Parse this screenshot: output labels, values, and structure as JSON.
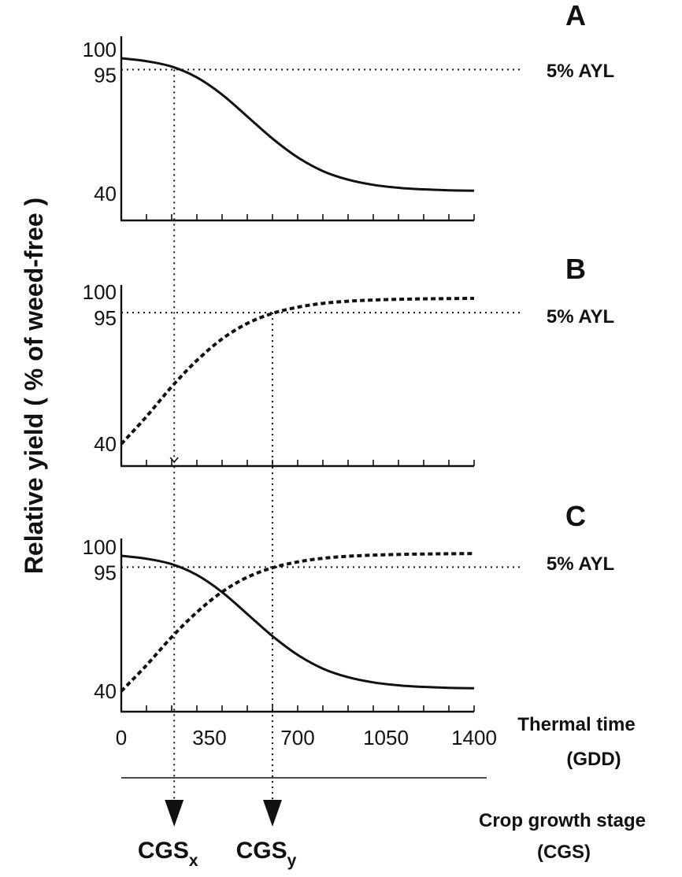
{
  "chart_data": {
    "type": "line",
    "ylabel": "Relative yield ( % of weed-free )",
    "xlabel": [
      "Thermal time",
      "(GDD)"
    ],
    "x_ticks": [
      "0",
      "350",
      "700",
      "1050",
      "1400"
    ],
    "x_tick_values": [
      0,
      350,
      700,
      1050,
      1400
    ],
    "x_minor_step": 100,
    "xlim": [
      0,
      1400
    ],
    "ylim": [
      40,
      100
    ],
    "y_ticks": [
      {
        "value": 100,
        "label": "100"
      },
      {
        "value": 95,
        "label": "95"
      },
      {
        "value": 40,
        "label": "40"
      }
    ],
    "threshold": {
      "value": 95,
      "label": "5% AYL"
    },
    "panels": [
      {
        "name": "A",
        "series": [
          {
            "style": "solid",
            "x": [
              0,
              100,
              200,
              300,
              400,
              500,
              600,
              700,
              800,
              900,
              1000,
              1100,
              1200,
              1300,
              1400
            ],
            "y": [
              100,
              98.7,
              96.3,
              91.5,
              83.9,
              74.2,
              64.4,
              56.1,
              50.0,
              46.2,
              43.9,
              42.6,
              41.9,
              41.5,
              41.3
            ]
          }
        ]
      },
      {
        "name": "B",
        "series": [
          {
            "style": "dashed",
            "x": [
              0,
              100,
              200,
              300,
              400,
              500,
              600,
              700,
              800,
              900,
              1000,
              1100,
              1200,
              1300,
              1400
            ],
            "y": [
              40,
              51.5,
              64.0,
              75.0,
              84.0,
              90.5,
              94.7,
              97.3,
              98.9,
              99.8,
              100.3,
              100.6,
              100.8,
              100.9,
              101.0
            ]
          }
        ]
      },
      {
        "name": "C",
        "series": [
          {
            "style": "solid",
            "x": [
              0,
              100,
              200,
              300,
              400,
              500,
              600,
              700,
              800,
              900,
              1000,
              1100,
              1200,
              1300,
              1400
            ],
            "y": [
              100,
              98.7,
              96.3,
              91.5,
              83.9,
              74.2,
              64.4,
              56.1,
              50.0,
              46.2,
              43.9,
              42.6,
              41.9,
              41.5,
              41.3
            ]
          },
          {
            "style": "dashed",
            "x": [
              0,
              100,
              200,
              300,
              400,
              500,
              600,
              700,
              800,
              900,
              1000,
              1100,
              1200,
              1300,
              1400
            ],
            "y": [
              40,
              51.5,
              64.0,
              75.0,
              84.0,
              90.5,
              94.7,
              97.3,
              98.9,
              99.8,
              100.3,
              100.6,
              100.8,
              100.9,
              101.0
            ]
          }
        ]
      }
    ],
    "stage_markers": [
      {
        "name": "CGS",
        "sub": "x",
        "x": 210
      },
      {
        "name": "CGS",
        "sub": "y",
        "x": 600
      }
    ],
    "stage_label": [
      "Crop growth stage",
      "(CGS)"
    ]
  }
}
